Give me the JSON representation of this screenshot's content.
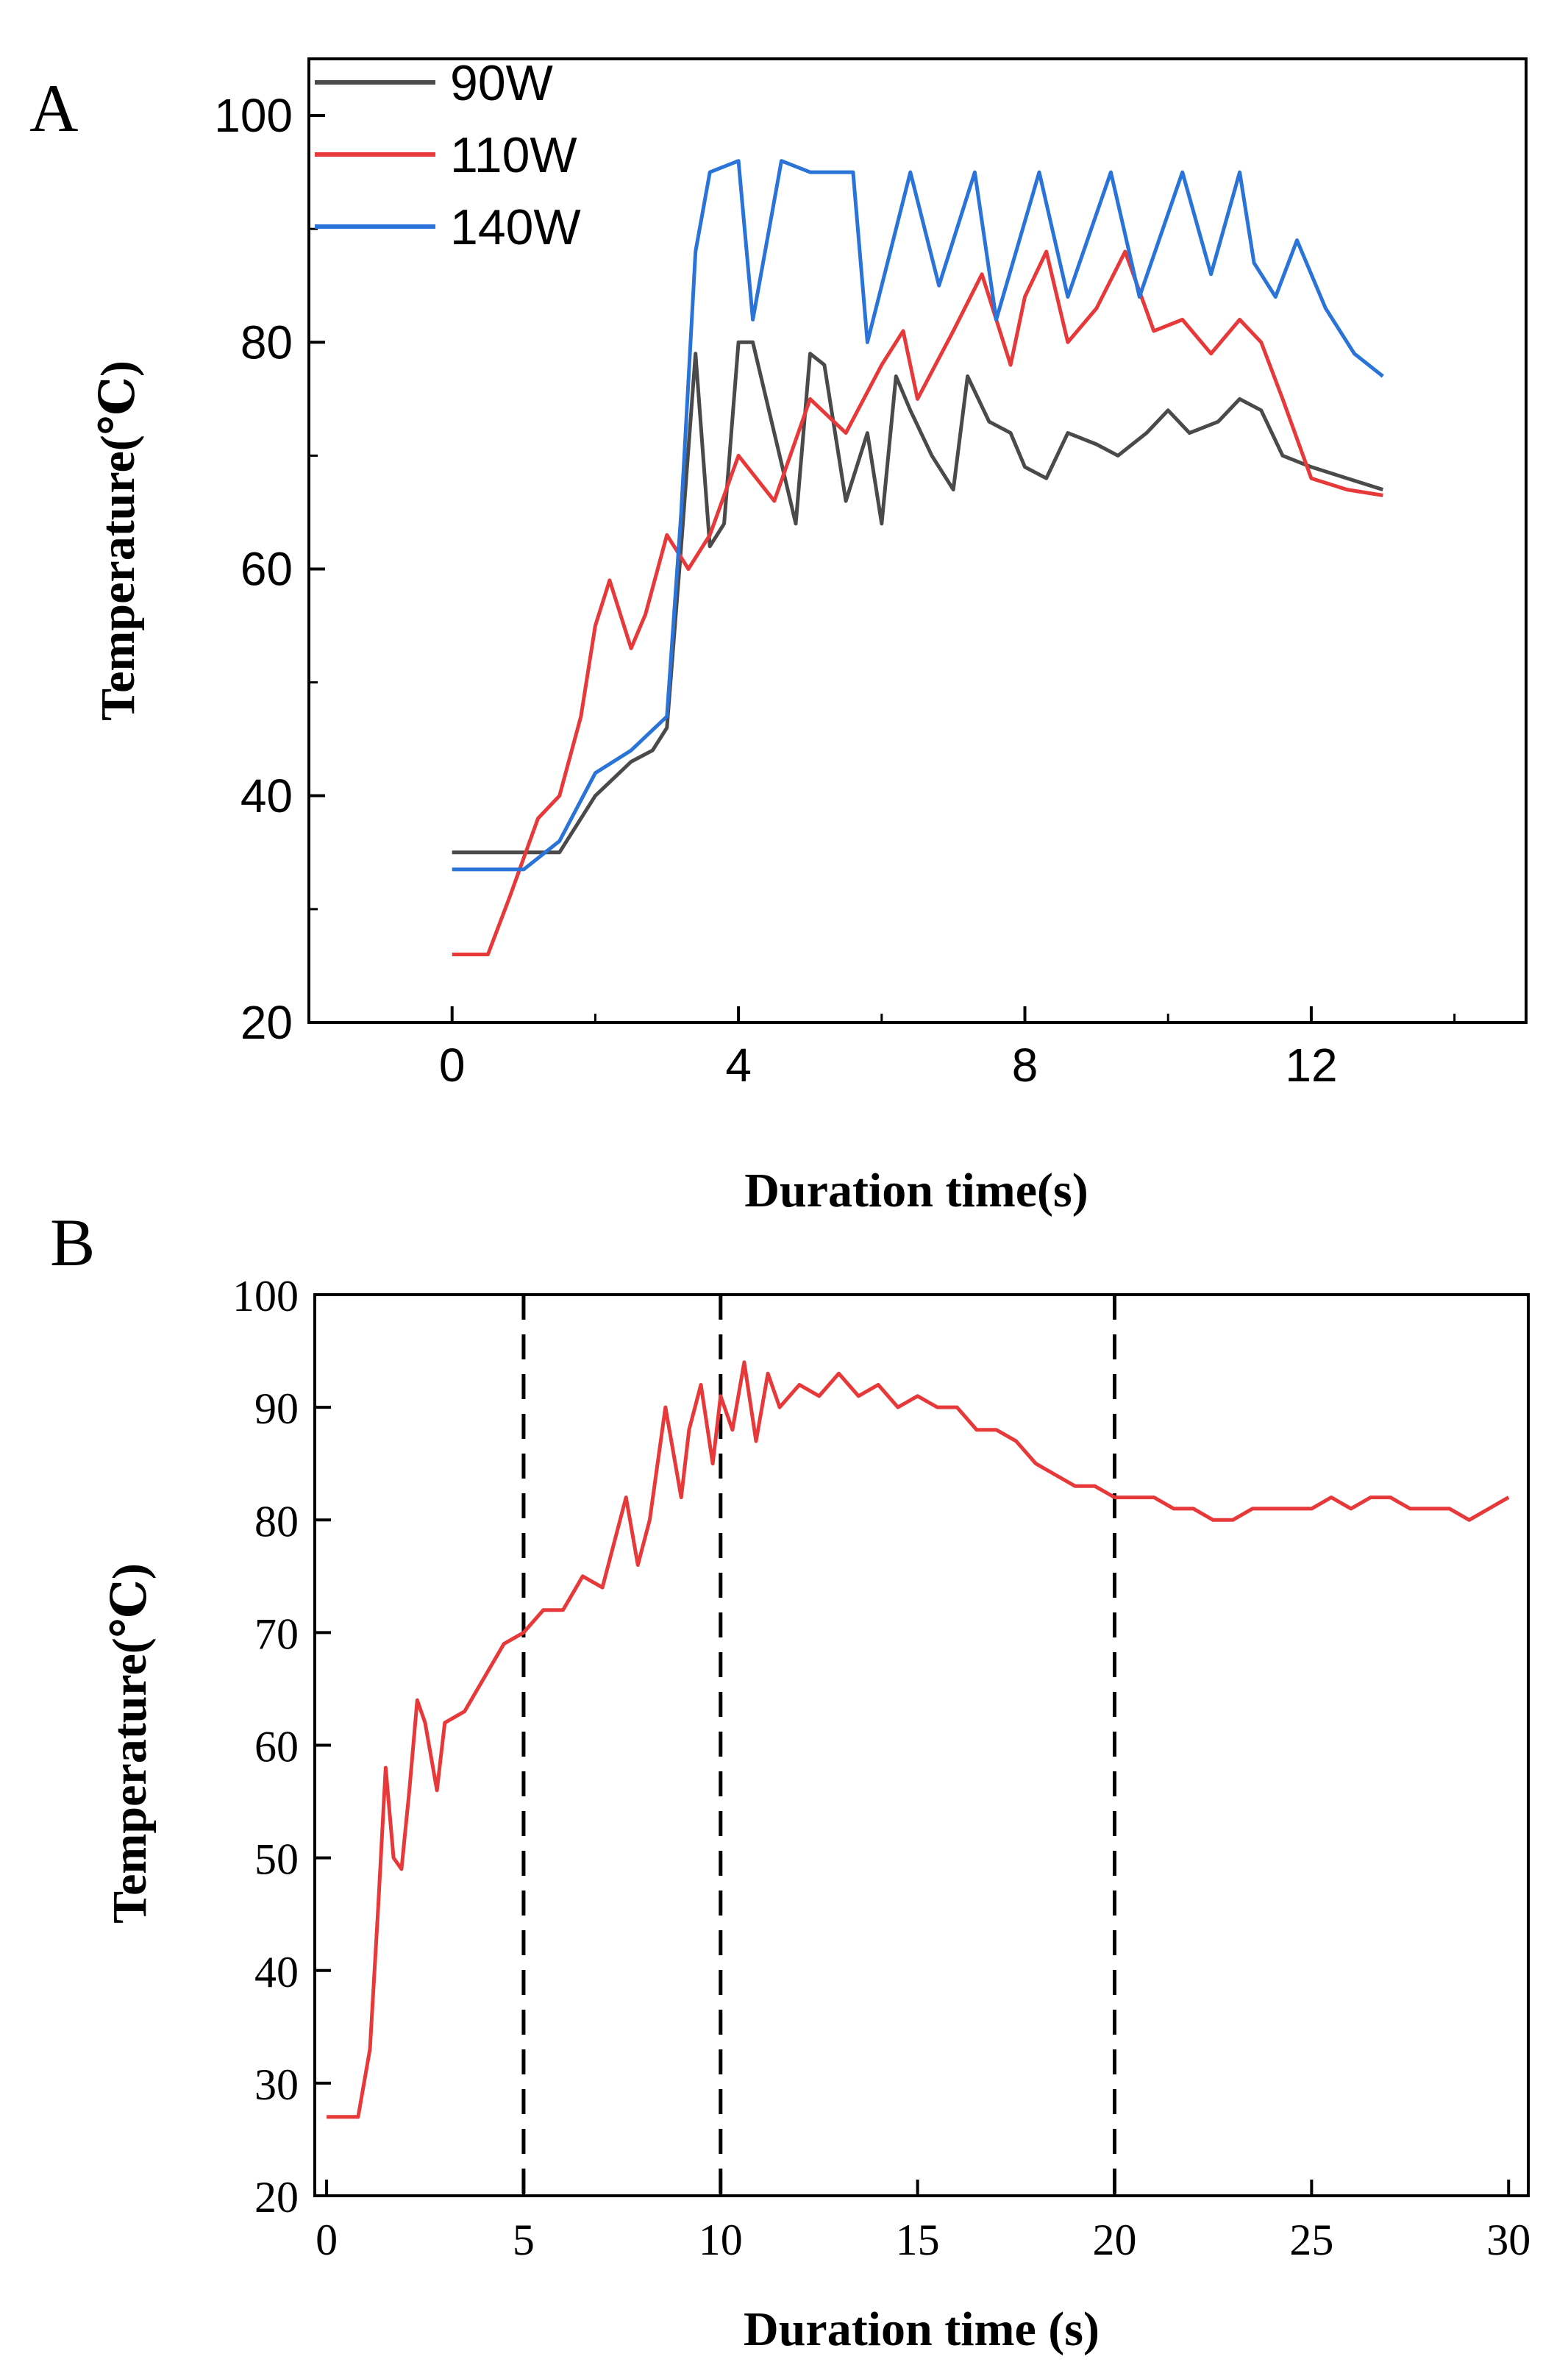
{
  "chart_data": [
    {
      "panel": "A",
      "type": "line",
      "xlabel": "Duration time(s)",
      "ylabel": "Temperature(℃)",
      "xlim": [
        -2,
        15
      ],
      "ylim": [
        20,
        105
      ],
      "xticks": [
        0,
        4,
        8,
        12
      ],
      "yticks": [
        20,
        40,
        60,
        80,
        100
      ],
      "legend_position": "top-left",
      "series": [
        {
          "name": "90W",
          "color": "#4a4a4a",
          "x": [
            0,
            0.5,
            1.0,
            1.5,
            2.0,
            2.5,
            2.8,
            3.0,
            3.2,
            3.4,
            3.6,
            3.8,
            4.0,
            4.2,
            4.5,
            4.8,
            5.0,
            5.2,
            5.5,
            5.8,
            6.0,
            6.2,
            6.4,
            6.7,
            7.0,
            7.2,
            7.5,
            7.8,
            8.0,
            8.3,
            8.6,
            9.0,
            9.3,
            9.7,
            10.0,
            10.3,
            10.7,
            11.0,
            11.3,
            11.6,
            12.0,
            12.5,
            13.0
          ],
          "values": [
            35,
            35,
            35,
            35,
            40,
            43,
            44,
            46,
            62,
            79,
            62,
            64,
            80,
            80,
            72,
            64,
            79,
            78,
            66,
            72,
            64,
            77,
            74,
            70,
            67,
            77,
            73,
            72,
            69,
            68,
            72,
            71,
            70,
            72,
            74,
            72,
            73,
            75,
            74,
            70,
            69,
            68,
            67
          ]
        },
        {
          "name": "110W",
          "color": "#e8393a",
          "x": [
            0,
            0.5,
            0.8,
            1.2,
            1.5,
            1.8,
            2.0,
            2.2,
            2.5,
            2.7,
            3.0,
            3.3,
            3.6,
            4.0,
            4.5,
            5.0,
            5.5,
            6.0,
            6.3,
            6.5,
            7.0,
            7.4,
            7.8,
            8.0,
            8.3,
            8.6,
            9.0,
            9.4,
            9.8,
            10.2,
            10.6,
            11.0,
            11.3,
            11.6,
            12.0,
            12.5,
            13.0
          ],
          "values": [
            26,
            26,
            31,
            38,
            40,
            47,
            55,
            59,
            53,
            56,
            63,
            60,
            63,
            70,
            66,
            75,
            72,
            78,
            81,
            75,
            81,
            86,
            78,
            84,
            88,
            80,
            83,
            88,
            81,
            82,
            79,
            82,
            80,
            75,
            68,
            67,
            66.5
          ]
        },
        {
          "name": "140W",
          "color": "#2a73d9",
          "x": [
            0,
            0.5,
            1.0,
            1.5,
            2.0,
            2.5,
            3.0,
            3.2,
            3.4,
            3.6,
            4.0,
            4.2,
            4.6,
            5.0,
            5.6,
            5.8,
            6.4,
            6.8,
            7.3,
            7.6,
            8.2,
            8.6,
            9.2,
            9.6,
            10.2,
            10.6,
            11.0,
            11.2,
            11.5,
            11.8,
            12.2,
            12.6,
            13.0
          ],
          "values": [
            33.5,
            33.5,
            33.5,
            36,
            42,
            44,
            47,
            65,
            88,
            95,
            96,
            82,
            96,
            95,
            95,
            80,
            95,
            85,
            95,
            82,
            95,
            84,
            95,
            84,
            95,
            86,
            95,
            87,
            84,
            89,
            83,
            79,
            77
          ]
        }
      ]
    },
    {
      "panel": "B",
      "type": "line",
      "xlabel": "Duration time (s)",
      "ylabel": "Temperature(℃)",
      "xlim": [
        -0.3,
        30.5
      ],
      "ylim": [
        20,
        100
      ],
      "xticks": [
        0,
        5,
        10,
        15,
        20,
        25,
        30
      ],
      "yticks": [
        20,
        30,
        40,
        50,
        60,
        70,
        80,
        90,
        100
      ],
      "vlines": [
        5,
        10,
        20
      ],
      "series": [
        {
          "name": "temperature",
          "color": "#e8393a",
          "x": [
            0,
            0.4,
            0.8,
            1.1,
            1.3,
            1.5,
            1.7,
            1.9,
            2.1,
            2.3,
            2.5,
            2.8,
            3.0,
            3.5,
            4.0,
            4.5,
            5.0,
            5.5,
            6.0,
            6.5,
            7.0,
            7.3,
            7.6,
            7.9,
            8.2,
            8.6,
            9.0,
            9.2,
            9.5,
            9.8,
            10.0,
            10.3,
            10.6,
            10.9,
            11.2,
            11.5,
            12.0,
            12.5,
            13.0,
            13.5,
            14.0,
            14.5,
            15.0,
            15.5,
            16.0,
            16.5,
            17.0,
            17.5,
            18.0,
            18.5,
            19.0,
            19.5,
            20.0,
            20.5,
            21.0,
            21.5,
            22.0,
            22.5,
            23.0,
            23.5,
            24.0,
            24.5,
            25.0,
            25.5,
            26.0,
            26.5,
            27.0,
            27.5,
            28.0,
            28.5,
            29.0,
            29.5,
            30.0
          ],
          "values": [
            27,
            27,
            27,
            33,
            45,
            58,
            50,
            49,
            56,
            64,
            62,
            56,
            62,
            63,
            66,
            69,
            70,
            72,
            72,
            75,
            74,
            78,
            82,
            76,
            80,
            90,
            82,
            88,
            92,
            85,
            91,
            88,
            94,
            87,
            93,
            90,
            92,
            91,
            93,
            91,
            92,
            90,
            91,
            90,
            90,
            88,
            88,
            87,
            85,
            84,
            83,
            83,
            82,
            82,
            82,
            81,
            81,
            80,
            80,
            81,
            81,
            81,
            81,
            82,
            81,
            82,
            82,
            81,
            81,
            81,
            80,
            81,
            82
          ]
        }
      ]
    }
  ]
}
